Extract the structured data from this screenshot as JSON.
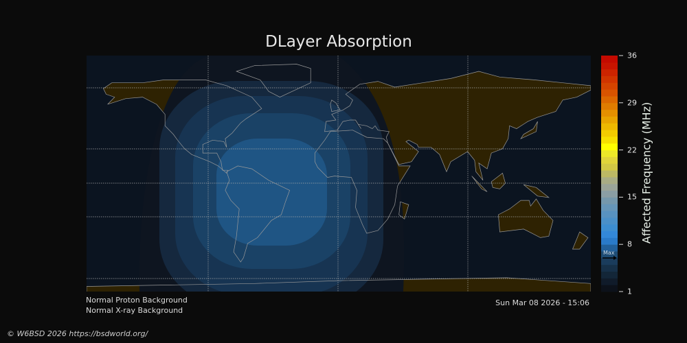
{
  "title": "DLayer Absorption",
  "status": {
    "proton": "Normal Proton Background",
    "xray": "Normal X-ray Background"
  },
  "timestamp": "Sun Mar 08 2026 - 15:06",
  "footer": "© W6BSD 2026 https://bsdworld.org/",
  "colorbar": {
    "label": "Affected Frequency (MHz)",
    "range": [
      1,
      36
    ],
    "ticks": [
      "36",
      "29",
      "22",
      "15",
      "8",
      "1"
    ],
    "max_marker_label": "Max",
    "max_marker_value": 6,
    "colors": [
      "#0c111a",
      "#101b2a",
      "#132638",
      "#163048",
      "#1a3c5c",
      "#1e4c74",
      "#22609a",
      "#2a7ac8",
      "#3388d8",
      "#3d8ed0",
      "#4a90c8",
      "#5892c0",
      "#6696b8",
      "#7598ac",
      "#8a9ea4",
      "#9aa498",
      "#a8ac84",
      "#bcb864",
      "#d2c844",
      "#e0d43a",
      "#ece828",
      "#ffff00",
      "#f6e000",
      "#f2cc00",
      "#eeb800",
      "#e8a400",
      "#e49000",
      "#e07c00",
      "#dc6800",
      "#d85400",
      "#d44400",
      "#d03400",
      "#cc2400",
      "#c81400",
      "#c40a00"
    ]
  },
  "map": {
    "land_day_color": "#2e2202",
    "night_color": "#0e1520",
    "ocean_color": "#0b1420",
    "coastline_color": "#9a9a9a",
    "absorption_colors": [
      "#111d2c",
      "#15283e",
      "#173452",
      "#1a4266",
      "#1f5584"
    ]
  }
}
